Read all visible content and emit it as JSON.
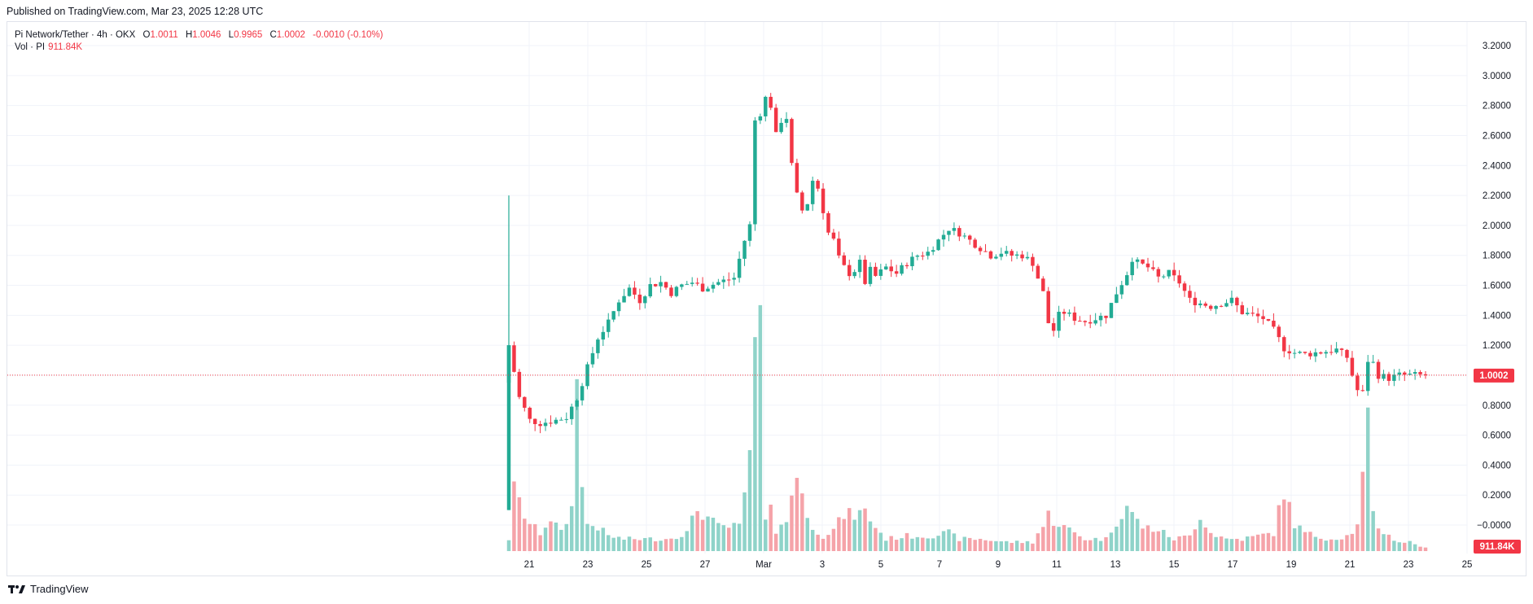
{
  "published": "Published on TradingView.com, Mar 23, 2025 12:28 UTC",
  "legend": {
    "symbol": "Pi Network/Tether · 4h · OKX",
    "o_label": "O",
    "o_value": "1.0011",
    "h_label": "H",
    "h_value": "1.0046",
    "l_label": "L",
    "l_value": "0.9965",
    "c_label": "C",
    "c_value": "1.0002",
    "change": "-0.0010 (-0.10%)",
    "vol_label": "Vol · PI",
    "vol_value": "911.84K"
  },
  "footer": {
    "brand": "TradingView"
  },
  "colors": {
    "up": "#22ab94",
    "down": "#f23645",
    "up_vol": "#8fd3c9",
    "down_vol": "#f5a3a9",
    "grid": "#f0f3fa"
  },
  "chart_data": {
    "type": "candlestick",
    "x_ticks": [
      "21",
      "23",
      "25",
      "27",
      "Mar",
      "3",
      "5",
      "7",
      "9",
      "11",
      "13",
      "15",
      "17",
      "19",
      "21",
      "23",
      "25"
    ],
    "y_ticks": [
      "3.2000",
      "3.0000",
      "2.8000",
      "2.6000",
      "2.4000",
      "2.2000",
      "2.0000",
      "1.8000",
      "1.6000",
      "1.4000",
      "1.2000",
      "1.0000",
      "0.8000",
      "0.6000",
      "0.4000",
      "0.2000",
      "−0.0000"
    ],
    "ylim": [
      -0.05,
      3.3
    ],
    "last_price": "1.0002",
    "last_volume": "911.84K",
    "price_path": [
      [
        0,
        1.2
      ],
      [
        2,
        0.85
      ],
      [
        4,
        0.7
      ],
      [
        6,
        0.68
      ],
      [
        9,
        0.7
      ],
      [
        11,
        0.72
      ],
      [
        13,
        0.85
      ],
      [
        15,
        1.05
      ],
      [
        17,
        1.25
      ],
      [
        19,
        1.35
      ],
      [
        21,
        1.5
      ],
      [
        23,
        1.58
      ],
      [
        25,
        1.5
      ],
      [
        27,
        1.6
      ],
      [
        29,
        1.62
      ],
      [
        31,
        1.55
      ],
      [
        33,
        1.6
      ],
      [
        35,
        1.62
      ],
      [
        37,
        1.58
      ],
      [
        40,
        1.62
      ],
      [
        43,
        1.65
      ],
      [
        45,
        1.9
      ],
      [
        46,
        2.0
      ],
      [
        47,
        2.7
      ],
      [
        48,
        2.75
      ],
      [
        49,
        2.85
      ],
      [
        50,
        2.8
      ],
      [
        51,
        2.6
      ],
      [
        52,
        2.7
      ],
      [
        53,
        2.72
      ],
      [
        54,
        2.4
      ],
      [
        55,
        2.2
      ],
      [
        56,
        2.1
      ],
      [
        57,
        2.15
      ],
      [
        58,
        2.3
      ],
      [
        59,
        2.25
      ],
      [
        60,
        2.1
      ],
      [
        61,
        1.95
      ],
      [
        62,
        1.9
      ],
      [
        63,
        1.78
      ],
      [
        64,
        1.72
      ],
      [
        65,
        1.68
      ],
      [
        66,
        1.7
      ],
      [
        67,
        1.75
      ],
      [
        68,
        1.62
      ],
      [
        69,
        1.7
      ],
      [
        70,
        1.66
      ],
      [
        72,
        1.72
      ],
      [
        74,
        1.68
      ],
      [
        76,
        1.75
      ],
      [
        78,
        1.8
      ],
      [
        80,
        1.82
      ],
      [
        82,
        1.9
      ],
      [
        84,
        1.98
      ],
      [
        86,
        1.95
      ],
      [
        88,
        1.9
      ],
      [
        90,
        1.85
      ],
      [
        92,
        1.8
      ],
      [
        94,
        1.82
      ],
      [
        96,
        1.8
      ],
      [
        98,
        1.8
      ],
      [
        100,
        1.75
      ],
      [
        101,
        1.65
      ],
      [
        102,
        1.55
      ],
      [
        103,
        1.35
      ],
      [
        104,
        1.3
      ],
      [
        105,
        1.4
      ],
      [
        106,
        1.42
      ],
      [
        108,
        1.38
      ],
      [
        110,
        1.36
      ],
      [
        112,
        1.38
      ],
      [
        114,
        1.4
      ],
      [
        116,
        1.55
      ],
      [
        118,
        1.68
      ],
      [
        119,
        1.78
      ],
      [
        120,
        1.75
      ],
      [
        122,
        1.72
      ],
      [
        124,
        1.65
      ],
      [
        126,
        1.68
      ],
      [
        128,
        1.62
      ],
      [
        130,
        1.5
      ],
      [
        132,
        1.48
      ],
      [
        134,
        1.46
      ],
      [
        136,
        1.48
      ],
      [
        138,
        1.5
      ],
      [
        140,
        1.42
      ],
      [
        142,
        1.4
      ],
      [
        144,
        1.38
      ],
      [
        146,
        1.3
      ],
      [
        148,
        1.18
      ],
      [
        150,
        1.15
      ],
      [
        152,
        1.14
      ],
      [
        154,
        1.15
      ],
      [
        156,
        1.16
      ],
      [
        158,
        1.17
      ],
      [
        160,
        1.12
      ],
      [
        161,
        1.0
      ],
      [
        162,
        0.9
      ],
      [
        163,
        0.88
      ],
      [
        164,
        1.1
      ],
      [
        165,
        1.08
      ],
      [
        166,
        1.0
      ],
      [
        168,
        0.98
      ],
      [
        170,
        1.0
      ],
      [
        172,
        1.0
      ],
      [
        174,
        1.0
      ],
      [
        175,
        1.0
      ]
    ],
    "volume_path": [
      [
        0,
        0.04
      ],
      [
        1,
        0.2
      ],
      [
        2,
        0.16
      ],
      [
        3,
        0.12
      ],
      [
        4,
        0.09
      ],
      [
        6,
        0.06
      ],
      [
        8,
        0.11
      ],
      [
        10,
        0.06
      ],
      [
        12,
        0.14
      ],
      [
        13,
        0.68
      ],
      [
        14,
        0.2
      ],
      [
        15,
        0.09
      ],
      [
        17,
        0.08
      ],
      [
        19,
        0.05
      ],
      [
        22,
        0.04
      ],
      [
        26,
        0.04
      ],
      [
        30,
        0.04
      ],
      [
        34,
        0.06
      ],
      [
        36,
        0.14
      ],
      [
        40,
        0.08
      ],
      [
        44,
        0.08
      ],
      [
        45,
        0.19
      ],
      [
        46,
        0.3
      ],
      [
        47,
        0.65
      ],
      [
        48,
        0.68
      ],
      [
        49,
        0.12
      ],
      [
        50,
        0.19
      ],
      [
        51,
        0.06
      ],
      [
        53,
        0.1
      ],
      [
        55,
        0.28
      ],
      [
        57,
        0.1
      ],
      [
        60,
        0.05
      ],
      [
        62,
        0.07
      ],
      [
        64,
        0.12
      ],
      [
        66,
        0.12
      ],
      [
        68,
        0.13
      ],
      [
        70,
        0.08
      ],
      [
        72,
        0.04
      ],
      [
        76,
        0.05
      ],
      [
        80,
        0.05
      ],
      [
        84,
        0.06
      ],
      [
        86,
        0.04
      ],
      [
        90,
        0.04
      ],
      [
        95,
        0.03
      ],
      [
        100,
        0.03
      ],
      [
        101,
        0.06
      ],
      [
        102,
        0.08
      ],
      [
        103,
        0.12
      ],
      [
        104,
        0.1
      ],
      [
        106,
        0.08
      ],
      [
        108,
        0.06
      ],
      [
        110,
        0.04
      ],
      [
        114,
        0.04
      ],
      [
        116,
        0.1
      ],
      [
        118,
        0.15
      ],
      [
        119,
        0.12
      ],
      [
        121,
        0.08
      ],
      [
        124,
        0.07
      ],
      [
        127,
        0.04
      ],
      [
        130,
        0.05
      ],
      [
        132,
        0.12
      ],
      [
        134,
        0.06
      ],
      [
        137,
        0.04
      ],
      [
        140,
        0.04
      ],
      [
        143,
        0.05
      ],
      [
        146,
        0.06
      ],
      [
        148,
        0.2
      ],
      [
        150,
        0.09
      ],
      [
        152,
        0.06
      ],
      [
        154,
        0.05
      ],
      [
        157,
        0.04
      ],
      [
        160,
        0.05
      ],
      [
        162,
        0.08
      ],
      [
        164,
        0.4
      ],
      [
        165,
        0.12
      ],
      [
        166,
        0.08
      ],
      [
        168,
        0.05
      ],
      [
        170,
        0.03
      ],
      [
        172,
        0.03
      ],
      [
        175,
        0.01
      ]
    ],
    "candle_count": 176,
    "x_range": [
      -4,
      196
    ]
  }
}
